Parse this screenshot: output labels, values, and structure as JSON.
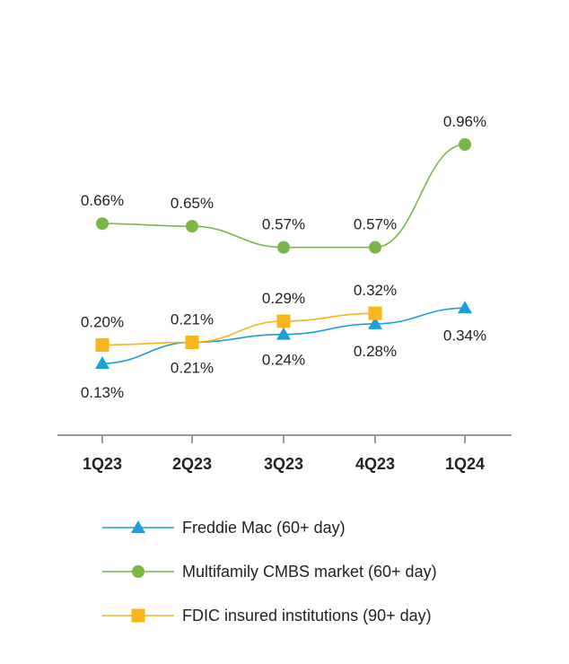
{
  "chart_data": {
    "type": "line",
    "categories": [
      "1Q23",
      "2Q23",
      "3Q23",
      "4Q23",
      "1Q24"
    ],
    "series": [
      {
        "name": "Freddie Mac (60+ day)",
        "values": [
          0.13,
          0.21,
          0.24,
          0.28,
          0.34
        ],
        "labels": [
          "0.13%",
          "0.21%",
          "0.24%",
          "0.28%",
          "0.34%"
        ],
        "color": "#1a9fd9",
        "marker": "triangle"
      },
      {
        "name": "Multifamily CMBS market (60+ day)",
        "values": [
          0.66,
          0.65,
          0.57,
          0.57,
          0.96
        ],
        "labels": [
          "0.66%",
          "0.65%",
          "0.57%",
          "0.57%",
          "0.96%"
        ],
        "color": "#7ab648",
        "marker": "circle"
      },
      {
        "name": "FDIC insured institutions (90+ day)",
        "values": [
          0.2,
          0.21,
          0.29,
          0.32,
          null
        ],
        "labels": [
          "0.20%",
          "0.21%",
          "0.29%",
          "0.32%",
          null
        ],
        "color": "#f9b51b",
        "marker": "square"
      }
    ],
    "legend_position": "bottom",
    "grid": false
  }
}
